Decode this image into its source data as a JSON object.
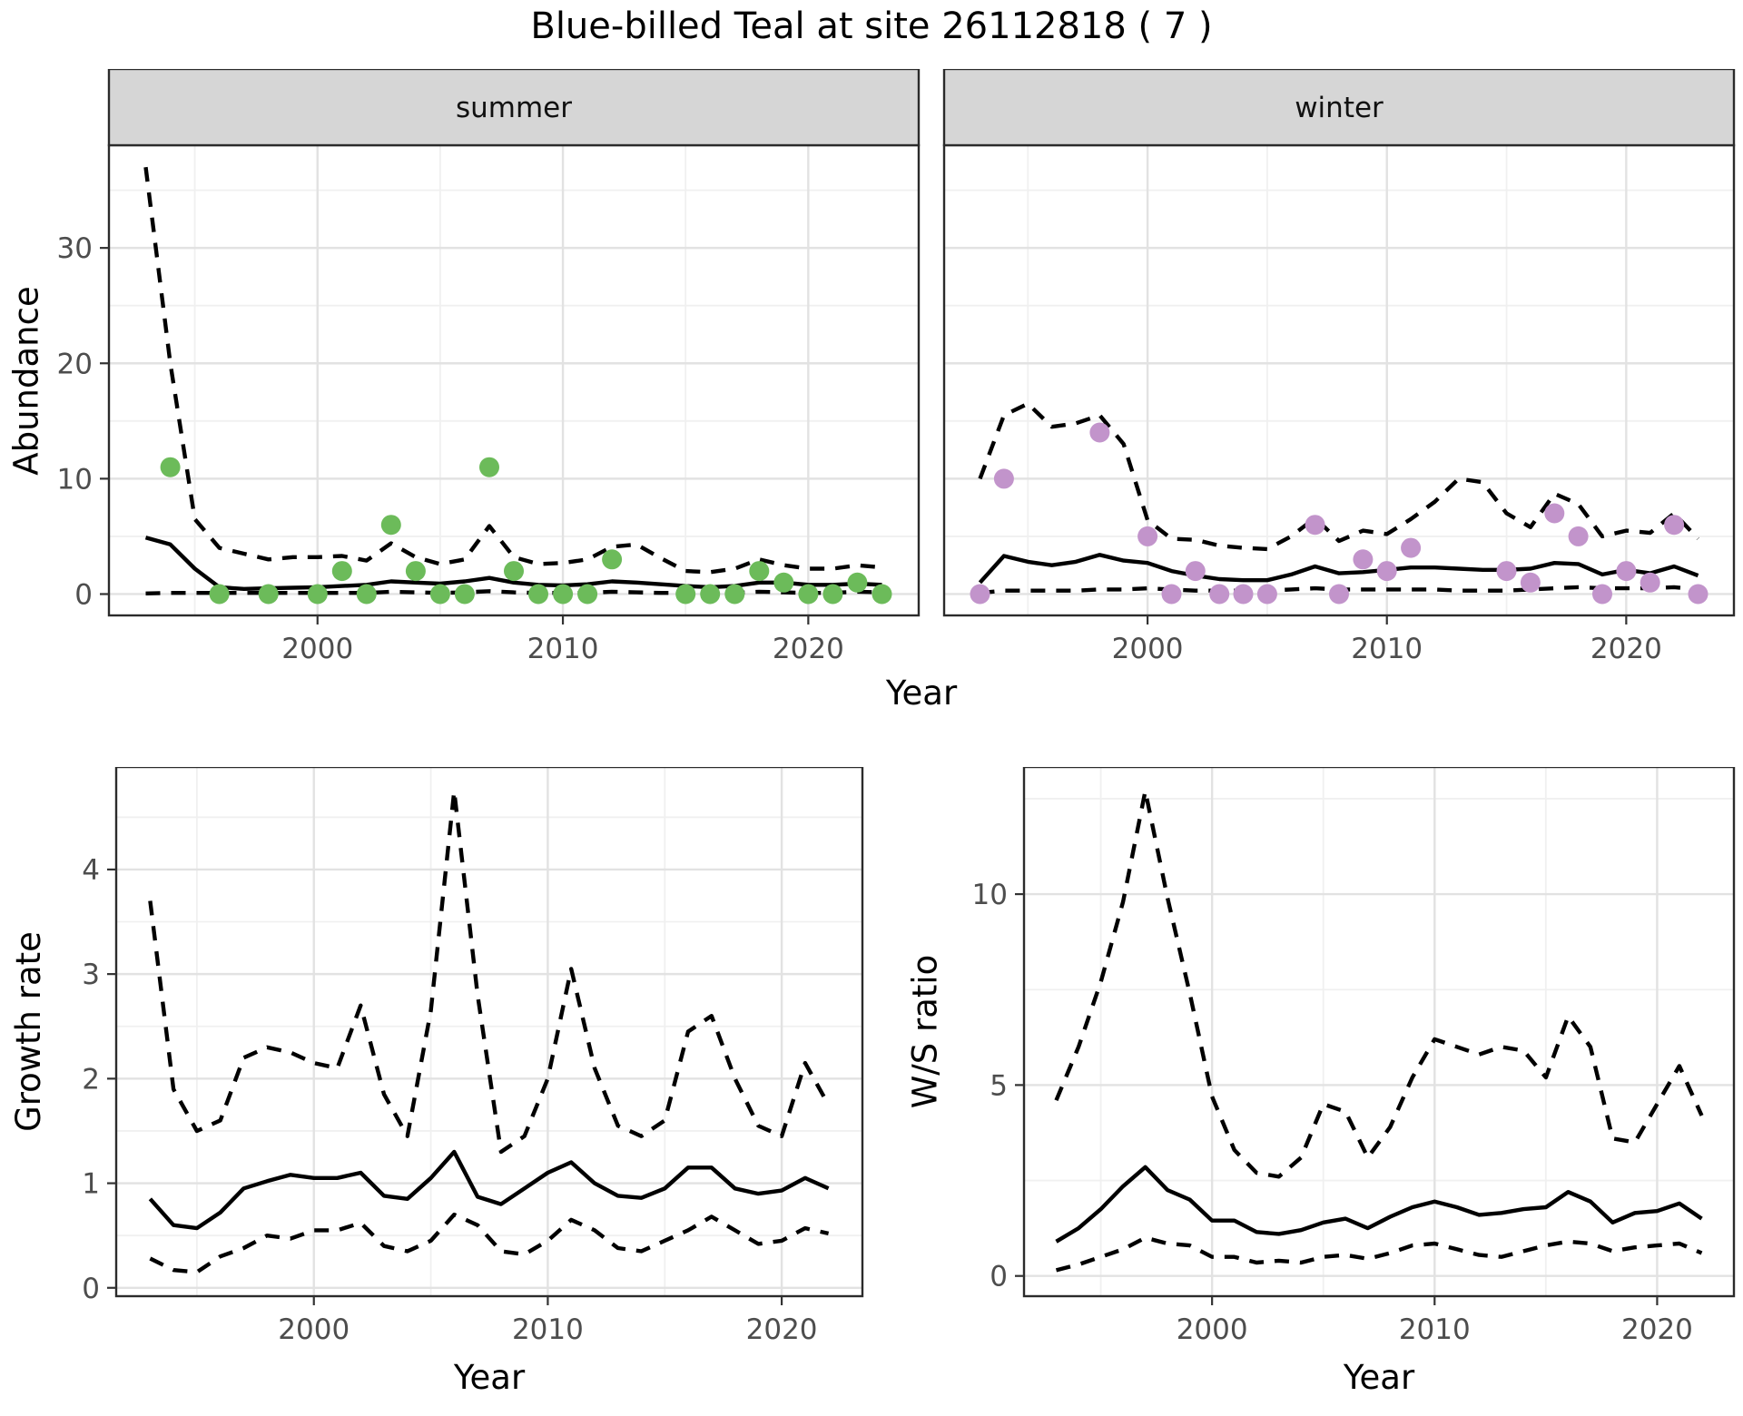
{
  "title": "Blue-billed Teal at site 26112818 ( 7 )",
  "axis_labels": {
    "abundance": "Abundance",
    "year_top": "Year",
    "growth": "Growth rate",
    "year_growth": "Year",
    "ws_ratio": "W/S ratio",
    "year_ws": "Year"
  },
  "colors": {
    "summer_points": "#6cbb5a",
    "winter_points": "#c294cb",
    "line": "#000000",
    "strip_bg": "#d6d6d6",
    "grid_major": "#e2e2e2",
    "grid_minor": "#f0f0f0",
    "tick_text": "#4d4d4d",
    "panel_border": "#2b2b2b"
  },
  "chart_data": [
    {
      "panel": "abundance-summer",
      "type": "line",
      "facet_label": "summer",
      "ylabel": "Abundance",
      "xlabel": "Year",
      "grid": true,
      "legend_position": "none",
      "xlim": [
        1991.5,
        2024.5
      ],
      "ylim": [
        -1.85,
        38.9
      ],
      "x_major_ticks": [
        2000,
        2010,
        2020
      ],
      "x_minor_ticks": [
        1995,
        2005,
        2015
      ],
      "y_major_ticks": [
        0,
        10,
        20,
        30
      ],
      "y_minor_ticks": [
        5,
        15,
        25,
        35
      ],
      "show_y_tick_labels": true,
      "point_color": "#6cbb5a",
      "x": [
        1993,
        1994,
        1995,
        1996,
        1997,
        1998,
        1999,
        2000,
        2001,
        2002,
        2003,
        2004,
        2005,
        2006,
        2007,
        2008,
        2009,
        2010,
        2011,
        2012,
        2013,
        2014,
        2015,
        2016,
        2017,
        2018,
        2019,
        2020,
        2021,
        2022,
        2023
      ],
      "series": [
        {
          "name": "mean",
          "style": "solid",
          "values": [
            4.9,
            4.3,
            2.2,
            0.6,
            0.45,
            0.5,
            0.55,
            0.6,
            0.7,
            0.8,
            1.1,
            1.0,
            0.9,
            1.1,
            1.4,
            1.0,
            0.8,
            0.75,
            0.85,
            1.1,
            1.0,
            0.85,
            0.7,
            0.6,
            0.7,
            1.0,
            1.0,
            0.8,
            0.8,
            0.9,
            0.8
          ]
        },
        {
          "name": "upper-ci",
          "style": "dashed",
          "values": [
            37,
            20,
            6.5,
            4.0,
            3.5,
            3.0,
            3.2,
            3.2,
            3.3,
            2.9,
            4.4,
            3.2,
            2.6,
            3.0,
            5.9,
            3.2,
            2.6,
            2.7,
            3.0,
            4.1,
            4.3,
            3.1,
            2.0,
            1.9,
            2.2,
            3.0,
            2.5,
            2.2,
            2.2,
            2.5,
            2.3
          ]
        },
        {
          "name": "lower-ci",
          "style": "dashed",
          "values": [
            0.05,
            0.1,
            0.1,
            0.1,
            0.1,
            0.1,
            0.1,
            0.1,
            0.1,
            0.1,
            0.2,
            0.15,
            0.1,
            0.15,
            0.25,
            0.15,
            0.1,
            0.1,
            0.1,
            0.2,
            0.15,
            0.1,
            0.1,
            0.1,
            0.1,
            0.2,
            0.15,
            0.1,
            0.1,
            0.2,
            0.15
          ]
        }
      ],
      "points": {
        "x": [
          1994,
          1996,
          1998,
          2000,
          2001,
          2002,
          2003,
          2004,
          2005,
          2006,
          2007,
          2008,
          2009,
          2010,
          2011,
          2012,
          2015,
          2016,
          2017,
          2018,
          2019,
          2020,
          2021,
          2022,
          2023
        ],
        "y": [
          11,
          0,
          0,
          0,
          2,
          0,
          6,
          2,
          0,
          0,
          11,
          2,
          0,
          0,
          0,
          3,
          0,
          0,
          0,
          2,
          1,
          0,
          0,
          1,
          0
        ]
      }
    },
    {
      "panel": "abundance-winter",
      "type": "line",
      "facet_label": "winter",
      "ylabel": "Abundance",
      "xlabel": "Year",
      "grid": true,
      "legend_position": "none",
      "xlim": [
        1991.5,
        2024.5
      ],
      "ylim": [
        -1.85,
        38.9
      ],
      "x_major_ticks": [
        2000,
        2010,
        2020
      ],
      "x_minor_ticks": [
        1995,
        2005,
        2015
      ],
      "y_major_ticks": [
        0,
        10,
        20,
        30
      ],
      "y_minor_ticks": [
        5,
        15,
        25,
        35
      ],
      "show_y_tick_labels": false,
      "point_color": "#c294cb",
      "x": [
        1993,
        1994,
        1995,
        1996,
        1997,
        1998,
        1999,
        2000,
        2001,
        2002,
        2003,
        2004,
        2005,
        2006,
        2007,
        2008,
        2009,
        2010,
        2011,
        2012,
        2013,
        2014,
        2015,
        2016,
        2017,
        2018,
        2019,
        2020,
        2021,
        2022,
        2023
      ],
      "series": [
        {
          "name": "mean",
          "style": "solid",
          "values": [
            1.0,
            3.3,
            2.8,
            2.5,
            2.8,
            3.4,
            2.9,
            2.7,
            2.0,
            1.6,
            1.3,
            1.2,
            1.2,
            1.7,
            2.4,
            1.8,
            1.9,
            2.1,
            2.3,
            2.3,
            2.2,
            2.1,
            2.1,
            2.2,
            2.7,
            2.6,
            1.7,
            2.1,
            1.8,
            2.4,
            1.6
          ]
        },
        {
          "name": "upper-ci",
          "style": "dashed",
          "values": [
            10,
            15.5,
            16.5,
            14.5,
            14.8,
            15.5,
            13,
            6.4,
            4.8,
            4.7,
            4.2,
            4.0,
            3.9,
            5.0,
            6.6,
            4.6,
            5.5,
            5.2,
            6.5,
            8.0,
            10.0,
            9.7,
            7.0,
            5.8,
            8.7,
            7.8,
            5.0,
            5.5,
            5.3,
            7.0,
            4.8
          ]
        },
        {
          "name": "lower-ci",
          "style": "dashed",
          "values": [
            0.1,
            0.3,
            0.3,
            0.3,
            0.3,
            0.4,
            0.4,
            0.5,
            0.4,
            0.3,
            0.3,
            0.3,
            0.3,
            0.4,
            0.5,
            0.4,
            0.4,
            0.4,
            0.4,
            0.4,
            0.3,
            0.3,
            0.3,
            0.4,
            0.5,
            0.6,
            0.5,
            0.5,
            0.5,
            0.6,
            0.4
          ]
        }
      ],
      "points": {
        "x": [
          1993,
          1994,
          1998,
          2000,
          2001,
          2002,
          2003,
          2004,
          2005,
          2007,
          2008,
          2009,
          2010,
          2011,
          2015,
          2016,
          2017,
          2018,
          2019,
          2020,
          2021,
          2022,
          2023
        ],
        "y": [
          0,
          10,
          14,
          5,
          0,
          2,
          0,
          0,
          0,
          6,
          0,
          3,
          2,
          4,
          2,
          1,
          7,
          5,
          0,
          2,
          1,
          6,
          0
        ]
      }
    },
    {
      "panel": "growth-rate",
      "type": "line",
      "facet_label": null,
      "ylabel": "Growth rate",
      "xlabel": "Year",
      "grid": true,
      "legend_position": "none",
      "xlim": [
        1991.55,
        2023.45
      ],
      "ylim": [
        -0.08,
        4.98
      ],
      "x_major_ticks": [
        2000,
        2010,
        2020
      ],
      "x_minor_ticks": [
        1995,
        2005,
        2015
      ],
      "y_major_ticks": [
        0,
        1,
        2,
        3,
        4
      ],
      "y_minor_ticks": [
        0.5,
        1.5,
        2.5,
        3.5,
        4.5
      ],
      "show_y_tick_labels": true,
      "point_color": null,
      "x": [
        1993,
        1994,
        1995,
        1996,
        1997,
        1998,
        1999,
        2000,
        2001,
        2002,
        2003,
        2004,
        2005,
        2006,
        2007,
        2008,
        2009,
        2010,
        2011,
        2012,
        2013,
        2014,
        2015,
        2016,
        2017,
        2018,
        2019,
        2020,
        2021,
        2022
      ],
      "series": [
        {
          "name": "mean",
          "style": "solid",
          "values": [
            0.85,
            0.6,
            0.57,
            0.72,
            0.95,
            1.02,
            1.08,
            1.05,
            1.05,
            1.1,
            0.88,
            0.85,
            1.05,
            1.3,
            0.87,
            0.8,
            0.95,
            1.1,
            1.2,
            1.0,
            0.88,
            0.86,
            0.95,
            1.15,
            1.15,
            0.95,
            0.9,
            0.93,
            1.05,
            0.95
          ]
        },
        {
          "name": "upper-ci",
          "style": "dashed",
          "values": [
            3.7,
            1.9,
            1.5,
            1.6,
            2.2,
            2.3,
            2.25,
            2.15,
            2.1,
            2.7,
            1.85,
            1.45,
            2.65,
            4.75,
            2.8,
            1.3,
            1.45,
            2.0,
            3.05,
            2.1,
            1.55,
            1.45,
            1.6,
            2.45,
            2.6,
            2.0,
            1.55,
            1.45,
            2.15,
            1.75
          ]
        },
        {
          "name": "lower-ci",
          "style": "dashed",
          "values": [
            0.28,
            0.17,
            0.15,
            0.3,
            0.38,
            0.5,
            0.47,
            0.55,
            0.55,
            0.62,
            0.4,
            0.35,
            0.45,
            0.7,
            0.6,
            0.35,
            0.32,
            0.45,
            0.65,
            0.55,
            0.38,
            0.35,
            0.45,
            0.55,
            0.68,
            0.55,
            0.42,
            0.45,
            0.57,
            0.52
          ]
        }
      ],
      "points": {
        "x": [],
        "y": []
      }
    },
    {
      "panel": "ws-ratio",
      "type": "line",
      "facet_label": null,
      "ylabel": "W/S ratio",
      "xlabel": "Year",
      "grid": true,
      "legend_position": "none",
      "xlim": [
        1991.55,
        2023.45
      ],
      "ylim": [
        -0.53,
        13.33
      ],
      "x_major_ticks": [
        2000,
        2010,
        2020
      ],
      "x_minor_ticks": [
        1995,
        2005,
        2015
      ],
      "y_major_ticks": [
        0,
        5,
        10
      ],
      "y_minor_ticks": [
        2.5,
        7.5,
        12.5
      ],
      "show_y_tick_labels": true,
      "point_color": null,
      "x": [
        1993,
        1994,
        1995,
        1996,
        1997,
        1998,
        1999,
        2000,
        2001,
        2002,
        2003,
        2004,
        2005,
        2006,
        2007,
        2008,
        2009,
        2010,
        2011,
        2012,
        2013,
        2014,
        2015,
        2016,
        2017,
        2018,
        2019,
        2020,
        2021,
        2022
      ],
      "series": [
        {
          "name": "mean",
          "style": "solid",
          "values": [
            0.9,
            1.25,
            1.75,
            2.35,
            2.85,
            2.25,
            2.0,
            1.45,
            1.45,
            1.15,
            1.1,
            1.2,
            1.4,
            1.5,
            1.25,
            1.55,
            1.8,
            1.95,
            1.8,
            1.6,
            1.65,
            1.75,
            1.8,
            2.2,
            1.95,
            1.4,
            1.65,
            1.7,
            1.9,
            1.5
          ]
        },
        {
          "name": "upper-ci",
          "style": "dashed",
          "values": [
            4.6,
            6.0,
            7.7,
            9.8,
            12.7,
            9.9,
            7.4,
            4.7,
            3.3,
            2.7,
            2.6,
            3.1,
            4.5,
            4.3,
            3.1,
            3.9,
            5.2,
            6.2,
            6.0,
            5.8,
            6.0,
            5.9,
            5.2,
            6.8,
            6.0,
            3.6,
            3.5,
            4.5,
            5.5,
            4.2
          ]
        },
        {
          "name": "lower-ci",
          "style": "dashed",
          "values": [
            0.15,
            0.3,
            0.5,
            0.7,
            1.0,
            0.85,
            0.8,
            0.5,
            0.5,
            0.35,
            0.4,
            0.35,
            0.5,
            0.55,
            0.45,
            0.6,
            0.8,
            0.85,
            0.7,
            0.55,
            0.5,
            0.65,
            0.8,
            0.9,
            0.85,
            0.65,
            0.75,
            0.8,
            0.85,
            0.6
          ]
        }
      ],
      "points": {
        "x": [],
        "y": []
      }
    }
  ]
}
